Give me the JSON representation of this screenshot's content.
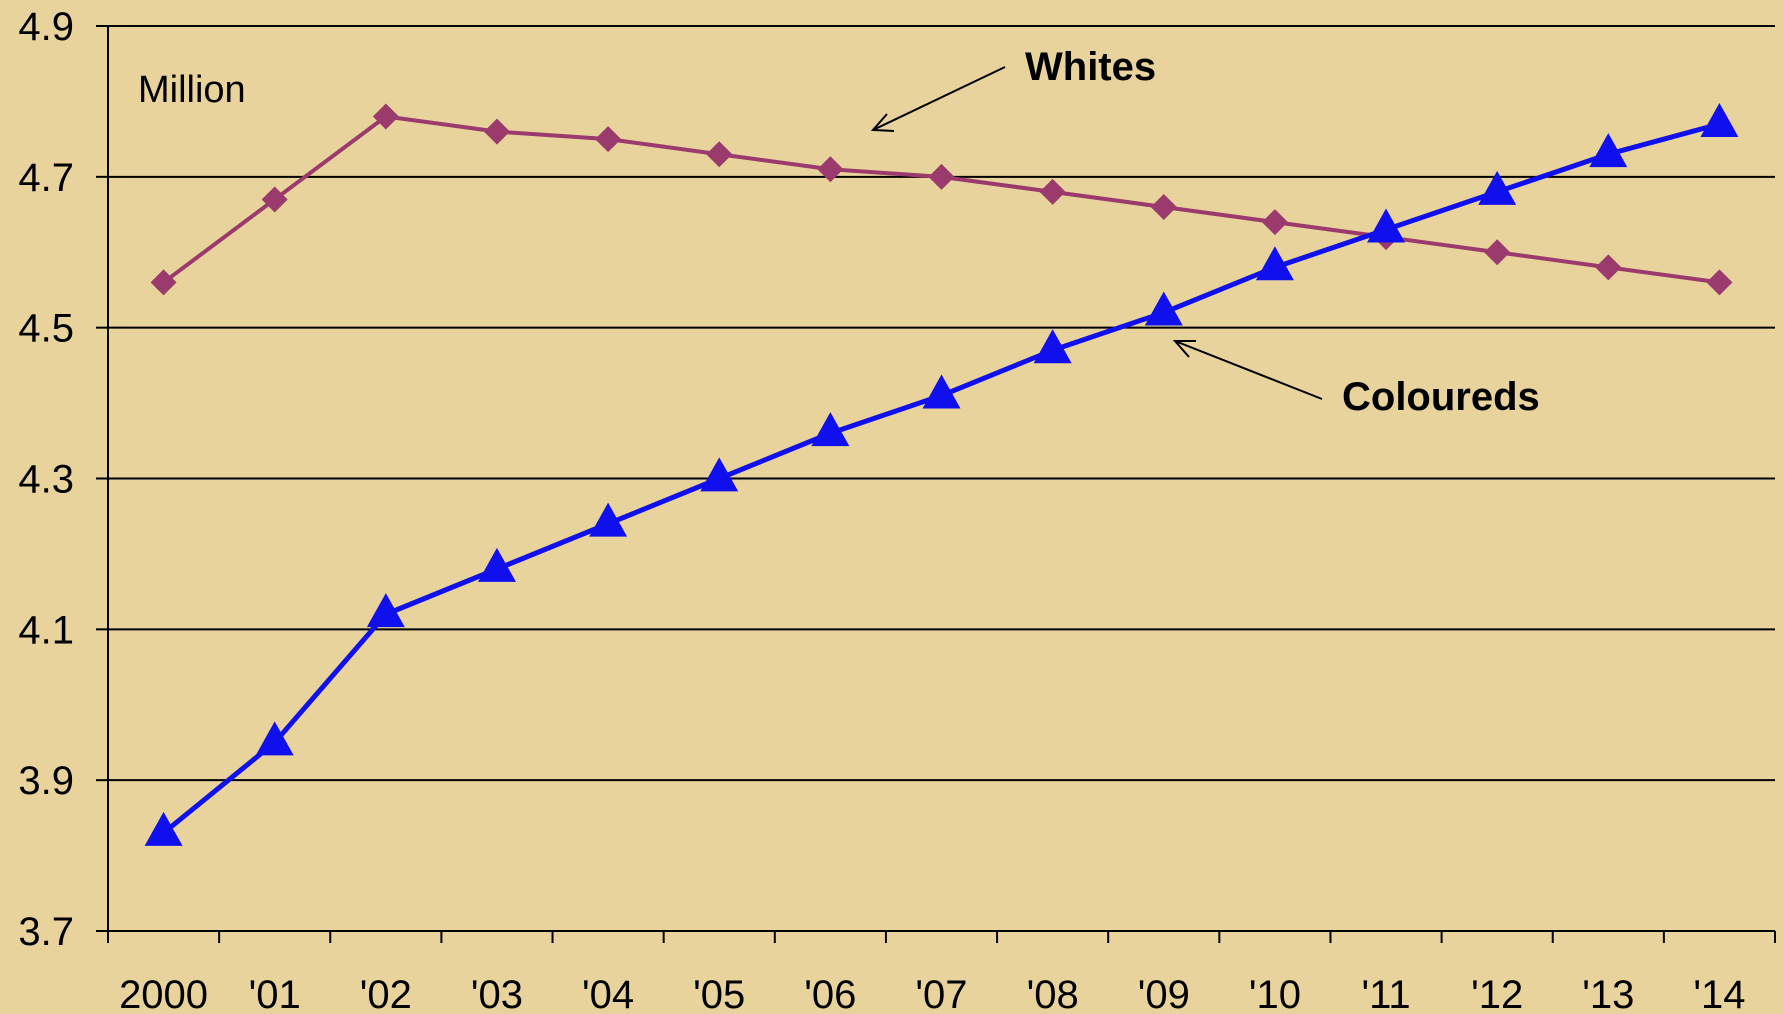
{
  "chart_data": {
    "type": "line",
    "title": "",
    "unit_label": "Million",
    "x": [
      "2000",
      "'01",
      "'02",
      "'03",
      "'04",
      "'05",
      "'06",
      "'07",
      "'08",
      "'09",
      "'10",
      "'11",
      "'12",
      "'13",
      "'14"
    ],
    "ylim": [
      3.7,
      4.9
    ],
    "yticks": [
      "3.7",
      "3.9",
      "4.1",
      "4.3",
      "4.5",
      "4.7",
      "4.9"
    ],
    "grid": true,
    "series": [
      {
        "name": "Whites",
        "color": "#9b3a6c",
        "marker": "diamond",
        "values": [
          4.56,
          4.67,
          4.78,
          4.76,
          4.75,
          4.73,
          4.71,
          4.7,
          4.68,
          4.66,
          4.64,
          4.62,
          4.6,
          4.58,
          4.56
        ]
      },
      {
        "name": "Coloureds",
        "color": "#1010ee",
        "marker": "triangle",
        "values": [
          3.83,
          3.95,
          4.12,
          4.18,
          4.24,
          4.3,
          4.36,
          4.41,
          4.47,
          4.52,
          4.58,
          4.63,
          4.68,
          4.73,
          4.77
        ]
      }
    ]
  }
}
